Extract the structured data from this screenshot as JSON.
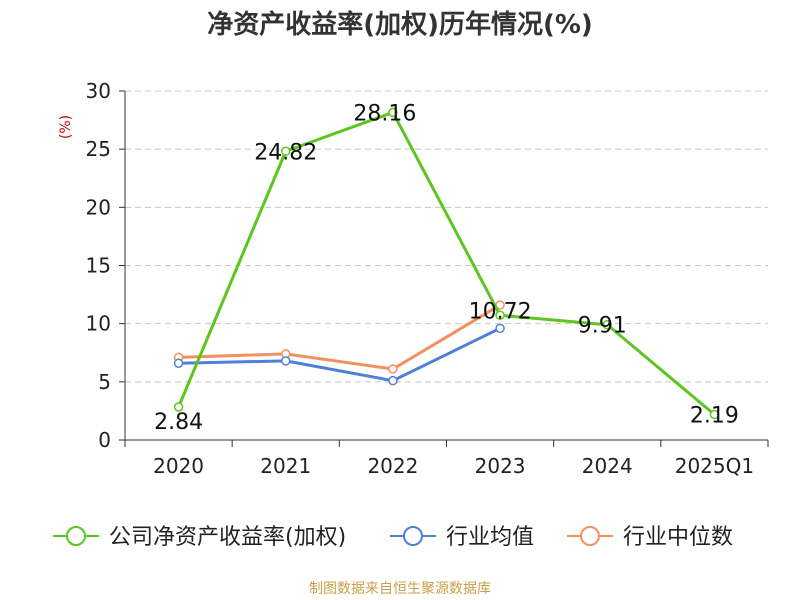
{
  "chart_data": {
    "type": "line",
    "title": "净资产收益率(加权)历年情况(%)",
    "ylabel": "(%)",
    "xlabel": "",
    "categories": [
      "2020",
      "2021",
      "2022",
      "2023",
      "2024",
      "2025Q1"
    ],
    "ylim": [
      0,
      30
    ],
    "yticks": [
      0,
      5,
      10,
      15,
      20,
      25,
      30
    ],
    "grid": true,
    "legend_position": "bottom",
    "series": [
      {
        "name": "公司净资产收益率(加权)",
        "color": "#5dc51f",
        "values": [
          2.84,
          24.82,
          28.16,
          10.72,
          9.91,
          2.19
        ],
        "data_labels": [
          "2.84",
          "24.82",
          "28.16",
          "10.72",
          "9.91",
          "2.19"
        ]
      },
      {
        "name": "行业均值",
        "color": "#4f7fd9",
        "values": [
          6.6,
          6.8,
          5.1,
          9.6,
          null,
          null
        ]
      },
      {
        "name": "行业中位数",
        "color": "#f39060",
        "values": [
          7.1,
          7.4,
          6.1,
          11.6,
          null,
          null
        ]
      }
    ]
  },
  "footer": {
    "source": "制图数据来自恒生聚源数据库"
  },
  "colors": {
    "axis": "#333333",
    "grid": "#c8c8c8",
    "ylabel": "#cc0000",
    "footer": "#c8a04a"
  }
}
